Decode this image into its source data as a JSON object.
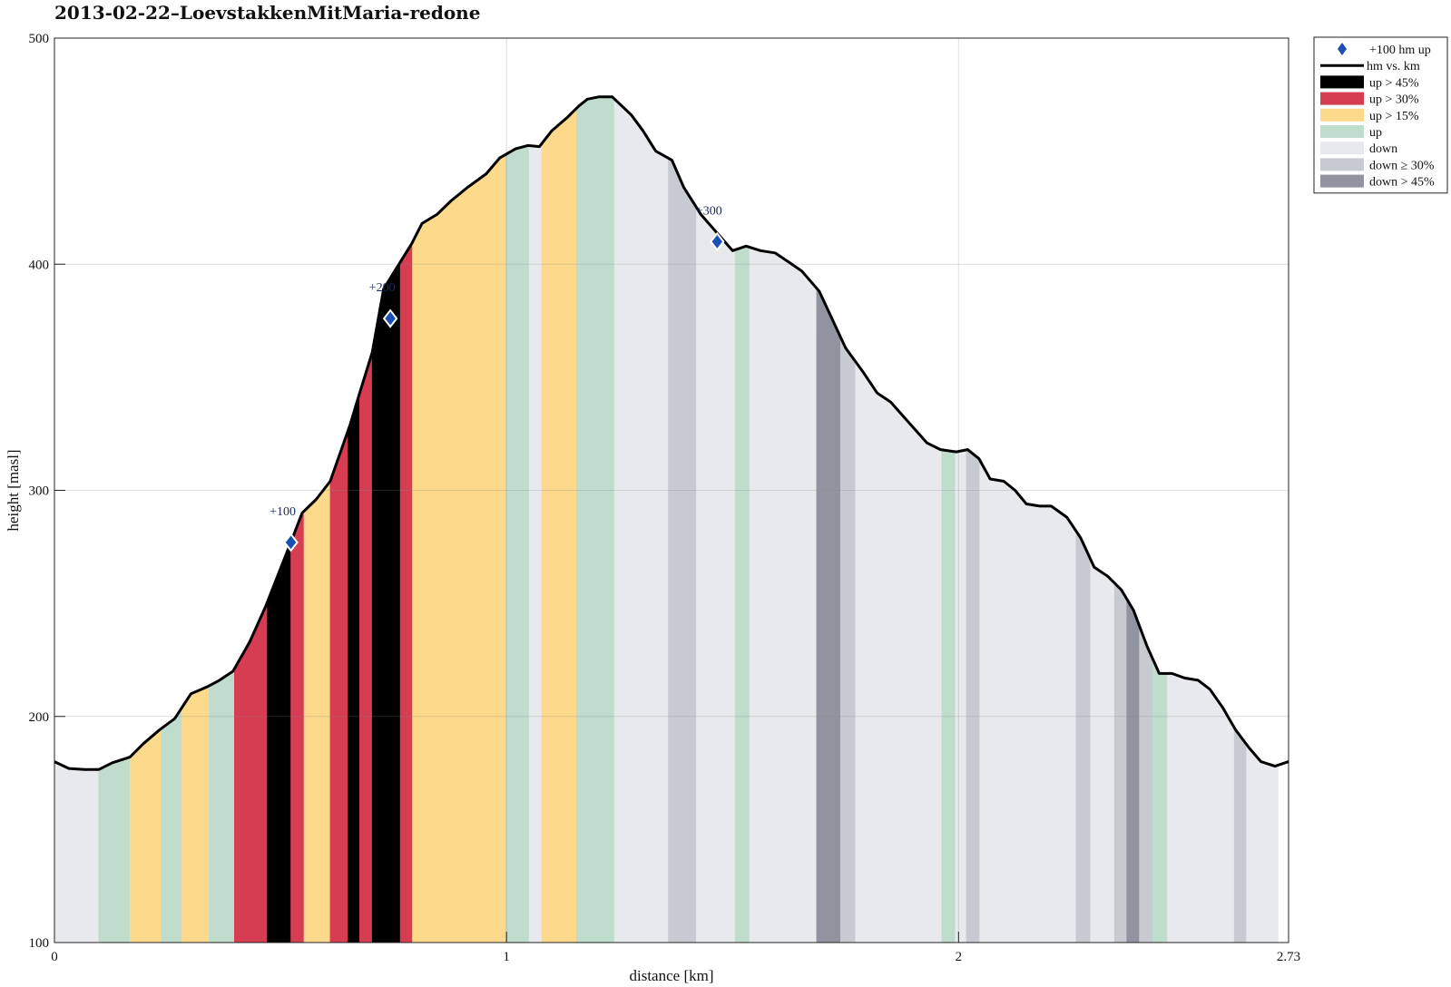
{
  "chart_data": {
    "type": "area",
    "title": "2013-02-22–LoevstakkenMitMaria-redone",
    "xlabel": "distance [km]",
    "ylabel": "height [masl]",
    "xlim": [
      0,
      2.73
    ],
    "ylim": [
      100,
      500
    ],
    "xticks": [
      {
        "value": 0,
        "label": "0"
      },
      {
        "value": 1,
        "label": "1"
      },
      {
        "value": 2,
        "label": "2"
      },
      {
        "value": 2.73,
        "label": "2.73"
      }
    ],
    "yticks": [
      {
        "value": 100,
        "label": "100"
      },
      {
        "value": 200,
        "label": "200"
      },
      {
        "value": 300,
        "label": "300"
      },
      {
        "value": 400,
        "label": "400"
      },
      {
        "value": 500,
        "label": "500"
      }
    ],
    "grid": true,
    "legend_position": "outside-top-right",
    "categories": [
      {
        "key": "up45",
        "label": "up > 45%",
        "color": "#000000"
      },
      {
        "key": "up30",
        "label": "up > 30%",
        "color": "#d73d52"
      },
      {
        "key": "up15",
        "label": "up > 15%",
        "color": "#fdd98b"
      },
      {
        "key": "up",
        "label": "up",
        "color": "#bfdccd"
      },
      {
        "key": "down",
        "label": "down",
        "color": "#e8e9ec"
      },
      {
        "key": "down30",
        "label": "down ≥ 30%",
        "color": "#c8cad1"
      },
      {
        "key": "down45",
        "label": "down > 45%",
        "color": "#8f94a0"
      }
    ],
    "profile_series": {
      "name": "hm vs. km",
      "x": [
        0.0,
        0.032,
        0.066,
        0.098,
        0.128,
        0.167,
        0.197,
        0.232,
        0.266,
        0.302,
        0.337,
        0.365,
        0.395,
        0.432,
        0.468,
        0.523,
        0.548,
        0.579,
        0.61,
        0.633,
        0.654,
        0.675,
        0.703,
        0.728,
        0.762,
        0.79,
        0.813,
        0.846,
        0.877,
        0.914,
        0.955,
        0.985,
        1.02,
        1.047,
        1.073,
        1.1,
        1.135,
        1.16,
        1.179,
        1.204,
        1.234,
        1.276,
        1.302,
        1.33,
        1.366,
        1.392,
        1.43,
        1.465,
        1.5,
        1.53,
        1.562,
        1.594,
        1.624,
        1.653,
        1.692,
        1.72,
        1.75,
        1.79,
        1.82,
        1.85,
        1.89,
        1.93,
        1.96,
        1.995,
        2.02,
        2.045,
        2.07,
        2.1,
        2.125,
        2.15,
        2.18,
        2.205,
        2.24,
        2.27,
        2.3,
        2.33,
        2.36,
        2.387,
        2.417,
        2.444,
        2.472,
        2.5,
        2.53,
        2.556,
        2.584,
        2.613,
        2.643,
        2.669,
        2.7,
        2.73
      ],
      "y": [
        180,
        177,
        176.5,
        176.5,
        179.5,
        182,
        188,
        194,
        199,
        210,
        213,
        216,
        220,
        233,
        249,
        277,
        290,
        296,
        304,
        317,
        329,
        343,
        361,
        389,
        400,
        409,
        418,
        422,
        428,
        434,
        440,
        447,
        451,
        452.5,
        452,
        459,
        465,
        470,
        473,
        474,
        474,
        466,
        459,
        450,
        446,
        434,
        422,
        414,
        406,
        408,
        406,
        405,
        401,
        397,
        388,
        376,
        363,
        352,
        343,
        339,
        330,
        321,
        318,
        317,
        318,
        314,
        305,
        304,
        300,
        294,
        293,
        293,
        288,
        279,
        266,
        262,
        256,
        247,
        231,
        219,
        219,
        217,
        216,
        212,
        204,
        194,
        186,
        180,
        178,
        180
      ]
    },
    "segments": [
      {
        "x0": 0.0,
        "x1": 0.098,
        "cat": "down"
      },
      {
        "x0": 0.098,
        "x1": 0.167,
        "cat": "up"
      },
      {
        "x0": 0.167,
        "x1": 0.236,
        "cat": "up15"
      },
      {
        "x0": 0.236,
        "x1": 0.282,
        "cat": "up"
      },
      {
        "x0": 0.282,
        "x1": 0.342,
        "cat": "up15"
      },
      {
        "x0": 0.342,
        "x1": 0.398,
        "cat": "up"
      },
      {
        "x0": 0.398,
        "x1": 0.471,
        "cat": "up30"
      },
      {
        "x0": 0.471,
        "x1": 0.523,
        "cat": "up45"
      },
      {
        "x0": 0.523,
        "x1": 0.552,
        "cat": "up30"
      },
      {
        "x0": 0.552,
        "x1": 0.61,
        "cat": "up15"
      },
      {
        "x0": 0.61,
        "x1": 0.649,
        "cat": "up30"
      },
      {
        "x0": 0.649,
        "x1": 0.675,
        "cat": "up45"
      },
      {
        "x0": 0.675,
        "x1": 0.703,
        "cat": "up30"
      },
      {
        "x0": 0.703,
        "x1": 0.765,
        "cat": "up45"
      },
      {
        "x0": 0.765,
        "x1": 0.792,
        "cat": "up30"
      },
      {
        "x0": 0.792,
        "x1": 0.998,
        "cat": "up15"
      },
      {
        "x0": 0.998,
        "x1": 1.05,
        "cat": "up"
      },
      {
        "x0": 1.05,
        "x1": 1.078,
        "cat": "down"
      },
      {
        "x0": 1.078,
        "x1": 1.155,
        "cat": "up15"
      },
      {
        "x0": 1.155,
        "x1": 1.239,
        "cat": "up"
      },
      {
        "x0": 1.239,
        "x1": 1.358,
        "cat": "down"
      },
      {
        "x0": 1.358,
        "x1": 1.42,
        "cat": "down30"
      },
      {
        "x0": 1.42,
        "x1": 1.506,
        "cat": "down"
      },
      {
        "x0": 1.506,
        "x1": 1.538,
        "cat": "up"
      },
      {
        "x0": 1.538,
        "x1": 1.686,
        "cat": "down"
      },
      {
        "x0": 1.686,
        "x1": 1.739,
        "cat": "down45"
      },
      {
        "x0": 1.739,
        "x1": 1.772,
        "cat": "down30"
      },
      {
        "x0": 1.772,
        "x1": 1.963,
        "cat": "down"
      },
      {
        "x0": 1.963,
        "x1": 1.993,
        "cat": "up"
      },
      {
        "x0": 1.993,
        "x1": 2.017,
        "cat": "down"
      },
      {
        "x0": 2.017,
        "x1": 2.047,
        "cat": "down30"
      },
      {
        "x0": 2.047,
        "x1": 2.26,
        "cat": "down"
      },
      {
        "x0": 2.26,
        "x1": 2.292,
        "cat": "down30"
      },
      {
        "x0": 2.292,
        "x1": 2.345,
        "cat": "down"
      },
      {
        "x0": 2.345,
        "x1": 2.372,
        "cat": "down30"
      },
      {
        "x0": 2.372,
        "x1": 2.4,
        "cat": "down45"
      },
      {
        "x0": 2.4,
        "x1": 2.43,
        "cat": "down30"
      },
      {
        "x0": 2.43,
        "x1": 2.462,
        "cat": "up"
      },
      {
        "x0": 2.462,
        "x1": 2.61,
        "cat": "down"
      },
      {
        "x0": 2.61,
        "x1": 2.637,
        "cat": "down30"
      },
      {
        "x0": 2.637,
        "x1": 2.707,
        "cat": "down"
      }
    ],
    "markers": {
      "name": "+100 hm up",
      "color": "#1a4fb5",
      "points": [
        {
          "x": 0.523,
          "y": 277,
          "label": "+100"
        },
        {
          "x": 0.743,
          "y": 376,
          "label": "+200"
        },
        {
          "x": 1.466,
          "y": 410,
          "label": "+300"
        }
      ]
    }
  }
}
